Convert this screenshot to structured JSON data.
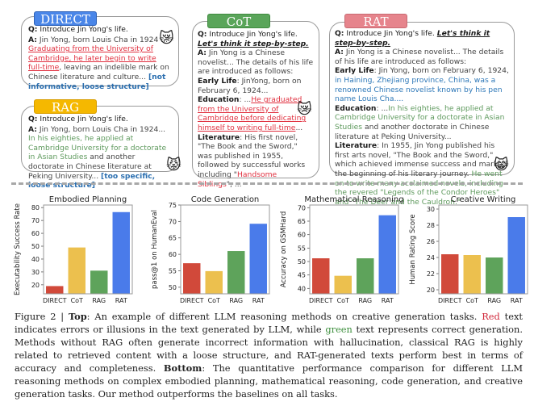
{
  "top": {
    "direct": {
      "tag": "DIRECT",
      "tag_color": "#4a86e8",
      "q_label": "Q:",
      "q_text": " Introduce Jin Yong's life.",
      "a_label": "A:",
      "a_text": "  Jin Yong, born Louis Cha in 1924 ...",
      "a_red": "Graduating from the University of Cambridge, he later begin to write full-time",
      "a_rest": ", leaving an indelible mark on Chinese literature and culture...",
      "verdict": "[not informative, loose structure]",
      "emoji": "😿"
    },
    "rag": {
      "tag": "RAG",
      "tag_color": "#f5b800",
      "q_label": "Q:",
      "q_text": " Introduce Jin Yong's life.",
      "a_label": "A:",
      "a_text": "  Jin Yong, born Louis Cha in 1924...",
      "a_green": " In his eighties, he applied at Cambridge University for a doctorate in Asian Studies",
      "a_rest": " and another doctorate in Chinese literature at Peking University...",
      "verdict": "[too specific, loose structure]",
      "emoji": "😾"
    },
    "cot": {
      "tag": "CoT",
      "tag_color": "#5aa55a",
      "q_label": "Q:",
      "q_text": " Introduce Jin Yong's life. ",
      "q_prompt": "Let's think it step-by-step.",
      "a_label": "A:",
      "a_text": " Jin Yong is a Chinese novelist... The details of his life are introduced as follows:",
      "early_label": "Early Life",
      "early_text": ": JinYong, born on February 6, 1924...",
      "edu_label": "Education",
      "edu_pre": ": ...",
      "edu_red": "He graduated from the University of Cambridge before dedicating himself to writing full-time",
      "edu_post": "...",
      "lit_label": "Literature",
      "lit_text": ": His first novel, \"The Book and the Sword,\" was published in 1955, followed by successful works including \"",
      "lit_red": "Handsome Siblings",
      "lit_post": "\", ...",
      "emoji": "😿"
    },
    "rat": {
      "tag": "RAT",
      "tag_color": "#e6848c",
      "q_label": "Q:",
      "q_text": " Introduce Jin Yong's life. ",
      "q_prompt": "Let's think it step-by-step.",
      "a_label": "A:",
      "a_text": " Jin Yong is a Chinese novelist... The details of his life are introduced as follows:",
      "early_label": "Early Life",
      "early_text": ": Jin Yong, born on February 6, 1924,",
      "early_blue": " in Haining, Zhejiang province, China, was a renowned Chinese novelist known by his pen name Louis Cha....",
      "edu_label": "Education",
      "edu_pre": ": ...",
      "edu_green": "In his eighties, he applied at Cambridge University for a doctorate in Asian Studies",
      "edu_post": " and another doctorate in Chinese literature at Peking University...",
      "lit_label": "Literature",
      "lit_text": ":  In 1955, Jin Yong published his first arts novel, \"The Book and the Sword,\" which achieved immense success and marked the beginning of his literary journey.",
      "lit_green": " He went on to write many acclaimed novels, including the revered \"Legends of the Condor Heroes\" and \"The Deer and the Cauldron.\"",
      "emoji": "😸"
    }
  },
  "chart_data": [
    {
      "type": "bar",
      "title": "Embodied Planning",
      "ylabel": "Executability Success Rate",
      "xlabel": "",
      "categories": [
        "DIRECT",
        "CoT",
        "RAG",
        "RAT"
      ],
      "values": [
        19,
        49,
        31,
        76.5
      ],
      "ylim": [
        13,
        82
      ],
      "yticks": [
        20,
        30,
        40,
        50,
        60,
        70,
        80
      ],
      "colors": [
        "#d1493a",
        "#ecc04e",
        "#5ea35b",
        "#4a7bea"
      ],
      "grid": false
    },
    {
      "type": "bar",
      "title": "Code Generation",
      "ylabel": "pass@1 on HumanEval",
      "xlabel": "",
      "categories": [
        "DIRECT",
        "CoT",
        "RAG",
        "RAT"
      ],
      "values": [
        57.3,
        54.9,
        61.0,
        69.3
      ],
      "ylim": [
        48,
        75
      ],
      "yticks": [
        50,
        55,
        60,
        65,
        70,
        75
      ],
      "colors": [
        "#d1493a",
        "#ecc04e",
        "#5ea35b",
        "#4a7bea"
      ],
      "grid": false
    },
    {
      "type": "bar",
      "title": "Mathematical Reasoning",
      "ylabel": "Accuracy on GSMHard",
      "xlabel": "",
      "categories": [
        "DIRECT",
        "CoT",
        "RAG",
        "RAT"
      ],
      "values": [
        51.2,
        44.7,
        51.2,
        67.2
      ],
      "ylim": [
        38,
        71
      ],
      "yticks": [
        40,
        45,
        50,
        55,
        60,
        65,
        70
      ],
      "colors": [
        "#d1493a",
        "#ecc04e",
        "#5ea35b",
        "#4a7bea"
      ],
      "grid": false
    },
    {
      "type": "bar",
      "title": "Creative Writing",
      "ylabel": "Human Rating Score",
      "xlabel": "",
      "categories": [
        "DIRECT",
        "CoT",
        "RAG",
        "RAT"
      ],
      "values": [
        24.4,
        24.3,
        24.0,
        29.0
      ],
      "ylim": [
        19.5,
        30.5
      ],
      "yticks": [
        20,
        22,
        24,
        26,
        28,
        30
      ],
      "colors": [
        "#d1493a",
        "#ecc04e",
        "#5ea35b",
        "#4a7bea"
      ],
      "grid": false
    }
  ],
  "caption": {
    "fig": "Figure 2 | ",
    "top_label": "Top",
    "p1": ": An example of different LLM reasoning methods on creative generation tasks. ",
    "red_word": "Red",
    "p2": " text indicates errors or illusions in the text generated by LLM, while ",
    "green_word": "green",
    "p3": " text represents correct generation.  Methods without RAG often generate incorrect information with hallucination, classical RAG is highly related to retrieved content with a loose structure, and RAT-generated texts perform best in terms of accuracy and completeness. ",
    "bottom_label": "Bottom",
    "p4": ": The quantitative performance comparison for different LLM reasoning methods on complex embodied planning, mathematical reasoning, code generation, and creative generation tasks. Our method outperforms the baselines on all tasks."
  }
}
